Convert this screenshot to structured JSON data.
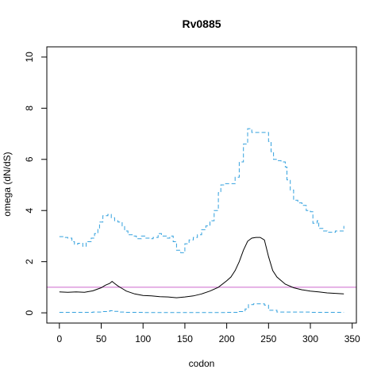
{
  "chart_data": {
    "type": "line",
    "title": "Rv0885",
    "xlabel": "codon",
    "ylabel": "omega (dN/dS)",
    "xlim": [
      -15,
      355
    ],
    "ylim": [
      -0.4,
      10.4
    ],
    "x_ticks": [
      "0",
      "50",
      "100",
      "150",
      "200",
      "250",
      "300",
      "350"
    ],
    "y_ticks": [
      "0",
      "2",
      "4",
      "6",
      "8",
      "10"
    ],
    "grid": false,
    "reference_line": {
      "y": 1,
      "color": "#cc66cc"
    },
    "series": [
      {
        "role": "omega",
        "style": "solid",
        "color": "#000000",
        "x": [
          0,
          10,
          20,
          30,
          40,
          50,
          55,
          60,
          63,
          66,
          70,
          75,
          80,
          90,
          100,
          110,
          120,
          130,
          140,
          150,
          160,
          170,
          180,
          190,
          200,
          205,
          210,
          215,
          220,
          225,
          230,
          235,
          240,
          245,
          250,
          255,
          260,
          270,
          280,
          290,
          300,
          310,
          320,
          330,
          340
        ],
        "y": [
          0.82,
          0.8,
          0.82,
          0.8,
          0.86,
          0.98,
          1.08,
          1.15,
          1.23,
          1.15,
          1.05,
          0.95,
          0.85,
          0.74,
          0.68,
          0.66,
          0.63,
          0.62,
          0.59,
          0.62,
          0.66,
          0.74,
          0.85,
          1.0,
          1.25,
          1.4,
          1.65,
          2.0,
          2.45,
          2.8,
          2.92,
          2.95,
          2.95,
          2.85,
          2.2,
          1.65,
          1.4,
          1.12,
          0.98,
          0.9,
          0.85,
          0.82,
          0.78,
          0.76,
          0.74
        ]
      },
      {
        "role": "upper",
        "style": "dashed",
        "color": "#33a1de",
        "x": [
          0,
          5,
          10,
          15,
          18,
          22,
          28,
          32,
          38,
          42,
          46,
          48,
          52,
          58,
          62,
          66,
          70,
          75,
          78,
          82,
          88,
          92,
          98,
          102,
          108,
          112,
          118,
          122,
          128,
          132,
          136,
          140,
          145,
          150,
          155,
          160,
          165,
          170,
          175,
          180,
          185,
          190,
          193,
          197,
          200,
          210,
          215,
          220,
          225,
          230,
          235,
          240,
          245,
          250,
          253,
          256,
          260,
          265,
          270,
          272,
          276,
          280,
          285,
          290,
          295,
          300,
          303,
          308,
          310,
          315,
          320,
          330,
          340
        ],
        "y": [
          2.98,
          2.95,
          2.92,
          2.78,
          2.68,
          2.72,
          2.6,
          2.78,
          2.92,
          3.1,
          3.3,
          3.55,
          3.8,
          3.85,
          3.72,
          3.6,
          3.55,
          3.4,
          3.2,
          3.05,
          3.0,
          2.9,
          3.0,
          2.92,
          2.9,
          2.95,
          3.1,
          3.0,
          2.92,
          3.0,
          2.78,
          2.45,
          2.35,
          2.7,
          2.85,
          2.95,
          3.05,
          3.25,
          3.4,
          3.6,
          4.0,
          4.7,
          5.0,
          5.05,
          5.05,
          5.3,
          5.9,
          6.6,
          7.2,
          7.05,
          7.05,
          7.05,
          7.05,
          6.7,
          6.3,
          6.0,
          5.95,
          5.9,
          5.7,
          5.2,
          4.8,
          4.4,
          4.3,
          4.2,
          4.0,
          3.95,
          3.5,
          3.6,
          3.3,
          3.2,
          3.15,
          3.2,
          3.4
        ]
      },
      {
        "role": "lower",
        "style": "dashed",
        "color": "#33a1de",
        "x": [
          0,
          20,
          40,
          50,
          60,
          65,
          70,
          80,
          100,
          150,
          200,
          215,
          222,
          226,
          232,
          240,
          245,
          250,
          260,
          300,
          340
        ],
        "y": [
          0.02,
          0.02,
          0.03,
          0.05,
          0.08,
          0.06,
          0.03,
          0.02,
          0.01,
          0.01,
          0.02,
          0.05,
          0.15,
          0.32,
          0.35,
          0.35,
          0.3,
          0.1,
          0.03,
          0.02,
          0.02
        ]
      }
    ]
  }
}
